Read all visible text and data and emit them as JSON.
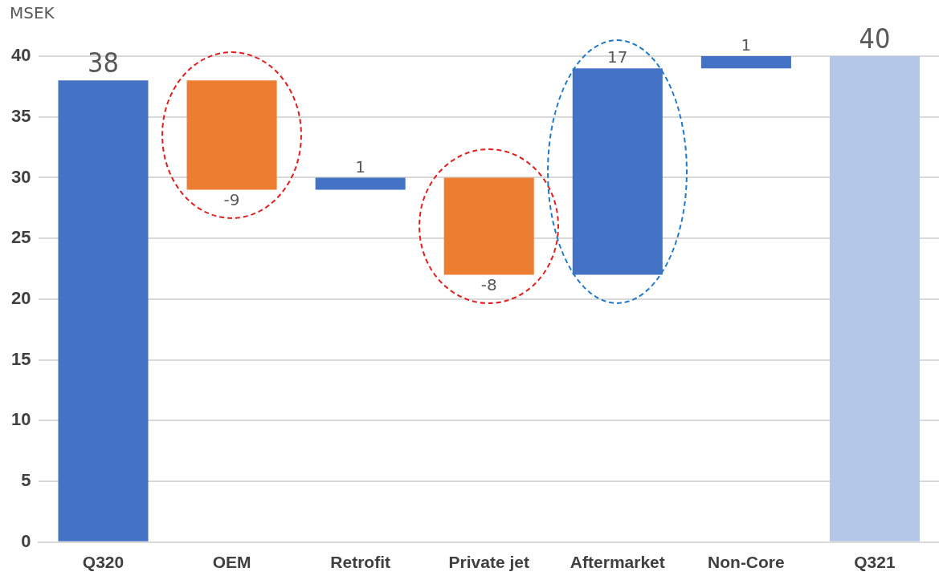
{
  "chart_data": {
    "type": "bar",
    "ylabel": "MSEK",
    "categories": [
      "Q320",
      "OEM",
      "Retrofit",
      "Private jet",
      "Aftermarket",
      "Non-Core",
      "Q321"
    ],
    "values": [
      38,
      -9,
      1,
      -8,
      17,
      1,
      40
    ],
    "base": [
      0,
      38,
      29,
      30,
      22,
      39,
      0
    ],
    "colors": [
      "#4472c4",
      "#ed7d31",
      "#4472c4",
      "#ed7d31",
      "#4472c4",
      "#4472c4",
      "#b4c7e7"
    ],
    "data_labels": true,
    "ylim": [
      0,
      40
    ],
    "yticks": [
      0,
      5,
      10,
      15,
      20,
      25,
      30,
      35,
      40
    ],
    "grid": "y",
    "legend": false
  }
}
